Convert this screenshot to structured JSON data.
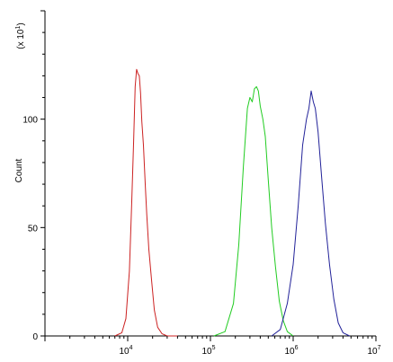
{
  "chart_data": {
    "type": "line",
    "title": "",
    "xlabel": "",
    "ylabel": "Count",
    "x_scale": "log",
    "xlim": [
      1000,
      10000000
    ],
    "ylim": [
      0,
      1500
    ],
    "multiplier_label": "(x 10",
    "multiplier_exponent": "1",
    "multiplier_close": ")",
    "x_ticks": [
      {
        "value": 10000,
        "base": "10",
        "exp": "4"
      },
      {
        "value": 100000,
        "base": "10",
        "exp": "5"
      },
      {
        "value": 1000000,
        "base": "10",
        "exp": "6"
      },
      {
        "value": 10000000,
        "base": "10",
        "exp": "7"
      }
    ],
    "y_ticks": [
      {
        "value": 0,
        "label": "0"
      },
      {
        "value": 500,
        "label": "50"
      },
      {
        "value": 1000,
        "label": "100"
      }
    ],
    "grid": false,
    "series": [
      {
        "color": "#cc2222",
        "x": [
          7000,
          8500,
          9500,
          10500,
          11200,
          11800,
          12300,
          12800,
          13300,
          13800,
          14300,
          14800,
          15500,
          16300,
          17000,
          18000,
          19500,
          21000,
          23000,
          26000,
          30000,
          40000
        ],
        "y": [
          0,
          15,
          80,
          300,
          620,
          900,
          1150,
          1230,
          1210,
          1200,
          1120,
          990,
          880,
          700,
          560,
          400,
          250,
          120,
          40,
          10,
          0,
          0
        ]
      },
      {
        "color": "#22cc22",
        "x": [
          110000,
          150000,
          190000,
          220000,
          250000,
          280000,
          300000,
          320000,
          340000,
          360000,
          380000,
          400000,
          430000,
          460000,
          500000,
          550000,
          610000,
          680000,
          760000,
          850000,
          1000000
        ],
        "y": [
          0,
          20,
          150,
          420,
          780,
          1050,
          1100,
          1080,
          1140,
          1150,
          1130,
          1060,
          1000,
          920,
          720,
          500,
          320,
          160,
          70,
          20,
          0
        ]
      },
      {
        "color": "#222299",
        "x": [
          550000,
          700000,
          850000,
          1000000,
          1150000,
          1300000,
          1450000,
          1550000,
          1650000,
          1750000,
          1850000,
          2000000,
          2200000,
          2450000,
          2750000,
          3100000,
          3500000,
          4000000,
          4800000
        ],
        "y": [
          0,
          30,
          150,
          330,
          600,
          880,
          1000,
          1050,
          1130,
          1080,
          1050,
          940,
          740,
          520,
          330,
          170,
          60,
          15,
          0
        ]
      }
    ]
  }
}
